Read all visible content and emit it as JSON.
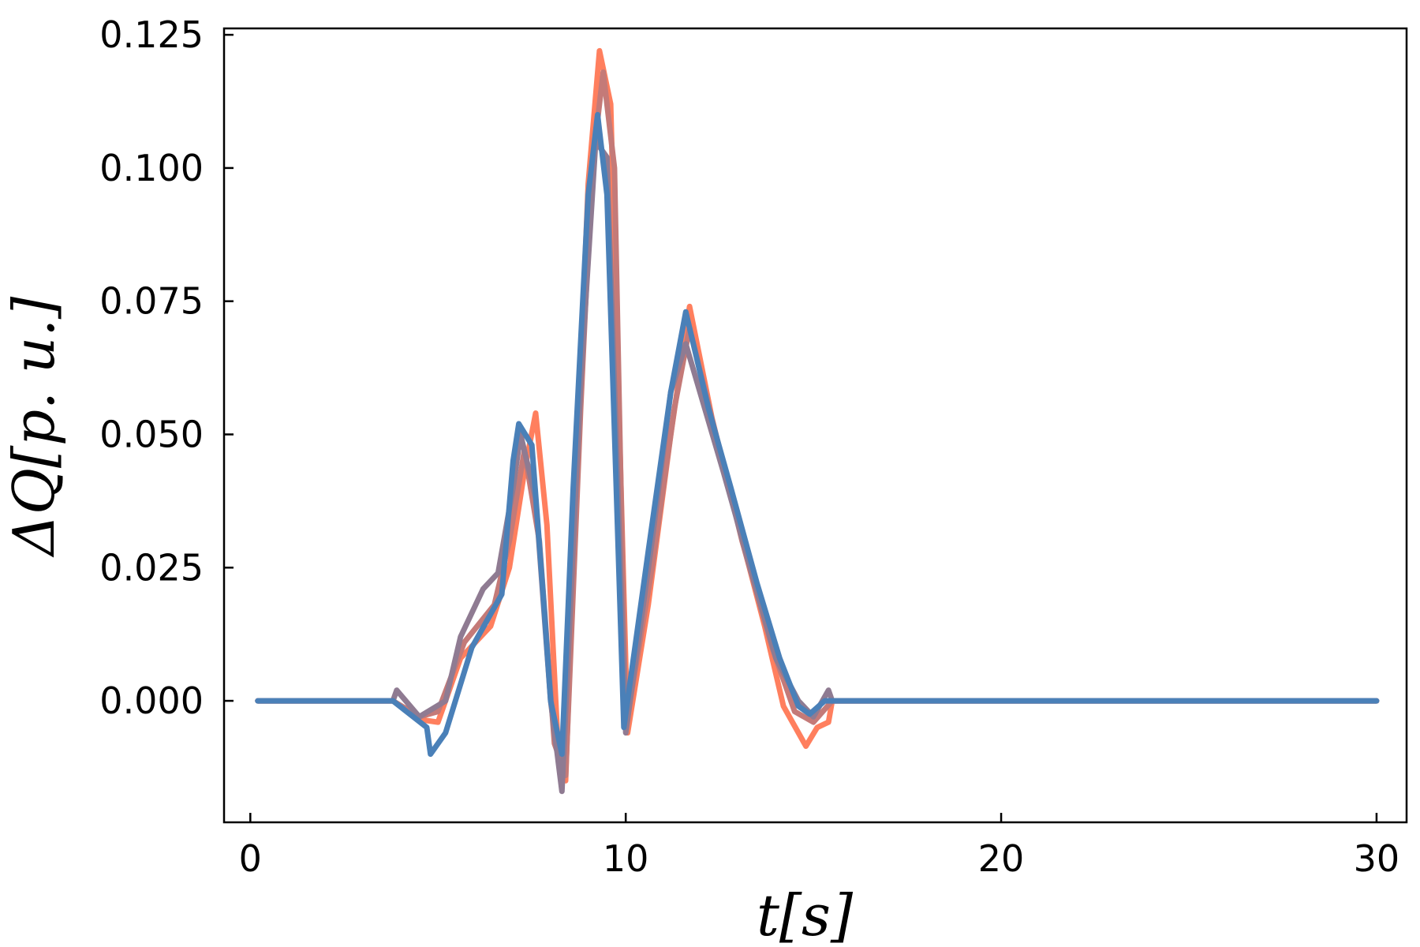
{
  "chart_data": {
    "type": "line",
    "xlabel": "t[s]",
    "ylabel": "ΔQ[p. u.]",
    "xlim": [
      -0.7,
      30.8
    ],
    "ylim": [
      -0.0228,
      0.1262
    ],
    "xticks": [
      0,
      10,
      20,
      30
    ],
    "xtick_labels": [
      "0",
      "10",
      "20",
      "30"
    ],
    "yticks": [
      0.0,
      0.025,
      0.05,
      0.075,
      0.1,
      0.125
    ],
    "ytick_labels": [
      "0.000",
      "0.025",
      "0.050",
      "0.075",
      "0.100",
      "0.125"
    ],
    "grid": false,
    "legend": "none",
    "series": [
      {
        "color": "#FF7F5E",
        "points": [
          [
            0.2,
            0
          ],
          [
            3.8,
            0
          ],
          [
            4.5,
            -0.0035
          ],
          [
            5.0,
            -0.004
          ],
          [
            5.6,
            0.008
          ],
          [
            6.4,
            0.014
          ],
          [
            6.9,
            0.025
          ],
          [
            7.3,
            0.043
          ],
          [
            7.6,
            0.054
          ],
          [
            7.9,
            0.033
          ],
          [
            8.2,
            -0.009
          ],
          [
            8.4,
            -0.015
          ],
          [
            8.7,
            0.045
          ],
          [
            9.0,
            0.097
          ],
          [
            9.3,
            0.122
          ],
          [
            9.6,
            0.112
          ],
          [
            9.95,
            0.02
          ],
          [
            10.05,
            -0.006
          ],
          [
            10.6,
            0.018
          ],
          [
            11.2,
            0.05
          ],
          [
            11.7,
            0.074
          ],
          [
            12.3,
            0.053
          ],
          [
            13.0,
            0.033
          ],
          [
            13.7,
            0.014
          ],
          [
            14.2,
            -0.001
          ],
          [
            14.8,
            -0.0085
          ],
          [
            15.1,
            -0.005
          ],
          [
            15.4,
            -0.004
          ],
          [
            15.5,
            0
          ],
          [
            30,
            0
          ]
        ]
      },
      {
        "color": "#C47A78",
        "points": [
          [
            0.2,
            0
          ],
          [
            3.8,
            0
          ],
          [
            4.5,
            -0.003
          ],
          [
            5.0,
            -0.002
          ],
          [
            5.7,
            0.011
          ],
          [
            6.5,
            0.018
          ],
          [
            6.9,
            0.03
          ],
          [
            7.3,
            0.047
          ],
          [
            7.7,
            0.03
          ],
          [
            8.1,
            -0.008
          ],
          [
            8.4,
            -0.014
          ],
          [
            8.8,
            0.055
          ],
          [
            9.1,
            0.1
          ],
          [
            9.4,
            0.118
          ],
          [
            9.7,
            0.1
          ],
          [
            10.0,
            -0.005
          ],
          [
            10.7,
            0.025
          ],
          [
            11.3,
            0.055
          ],
          [
            11.7,
            0.07
          ],
          [
            12.4,
            0.05
          ],
          [
            13.1,
            0.03
          ],
          [
            13.9,
            0.01
          ],
          [
            14.5,
            -0.002
          ],
          [
            15.0,
            -0.004
          ],
          [
            15.5,
            0
          ],
          [
            30,
            0
          ]
        ]
      },
      {
        "color": "#8F7B92",
        "points": [
          [
            0.2,
            0
          ],
          [
            3.8,
            0
          ],
          [
            3.9,
            0.002
          ],
          [
            4.5,
            -0.003
          ],
          [
            5.2,
            0.0
          ],
          [
            5.6,
            0.012
          ],
          [
            6.2,
            0.021
          ],
          [
            6.6,
            0.024
          ],
          [
            7.0,
            0.04
          ],
          [
            7.2,
            0.05
          ],
          [
            7.6,
            0.038
          ],
          [
            8.0,
            0.0
          ],
          [
            8.3,
            -0.017
          ],
          [
            8.8,
            0.06
          ],
          [
            9.2,
            0.105
          ],
          [
            9.5,
            0.102
          ],
          [
            10.0,
            -0.006
          ],
          [
            10.7,
            0.03
          ],
          [
            11.2,
            0.058
          ],
          [
            11.6,
            0.067
          ],
          [
            12.1,
            0.055
          ],
          [
            12.6,
            0.043
          ],
          [
            13.2,
            0.028
          ],
          [
            14.0,
            0.008
          ],
          [
            14.6,
            0.0
          ],
          [
            15.0,
            -0.003
          ],
          [
            15.4,
            0.002
          ],
          [
            15.5,
            0
          ],
          [
            30,
            0
          ]
        ]
      },
      {
        "color": "#4A80B8",
        "points": [
          [
            0.2,
            0
          ],
          [
            3.8,
            0
          ],
          [
            4.7,
            -0.005
          ],
          [
            4.8,
            -0.01
          ],
          [
            5.2,
            -0.006
          ],
          [
            5.9,
            0.01
          ],
          [
            6.7,
            0.02
          ],
          [
            7.0,
            0.045
          ],
          [
            7.15,
            0.052
          ],
          [
            7.5,
            0.048
          ],
          [
            7.8,
            0.02
          ],
          [
            8.0,
            0.0
          ],
          [
            8.3,
            -0.01
          ],
          [
            8.6,
            0.04
          ],
          [
            9.0,
            0.095
          ],
          [
            9.25,
            0.11
          ],
          [
            9.5,
            0.095
          ],
          [
            9.95,
            -0.005
          ],
          [
            10.6,
            0.028
          ],
          [
            11.2,
            0.058
          ],
          [
            11.6,
            0.073
          ],
          [
            12.2,
            0.055
          ],
          [
            12.8,
            0.04
          ],
          [
            13.5,
            0.022
          ],
          [
            14.1,
            0.008
          ],
          [
            14.6,
            -0.001
          ],
          [
            14.9,
            -0.0025
          ],
          [
            15.3,
            0
          ],
          [
            30,
            0
          ]
        ]
      }
    ]
  }
}
